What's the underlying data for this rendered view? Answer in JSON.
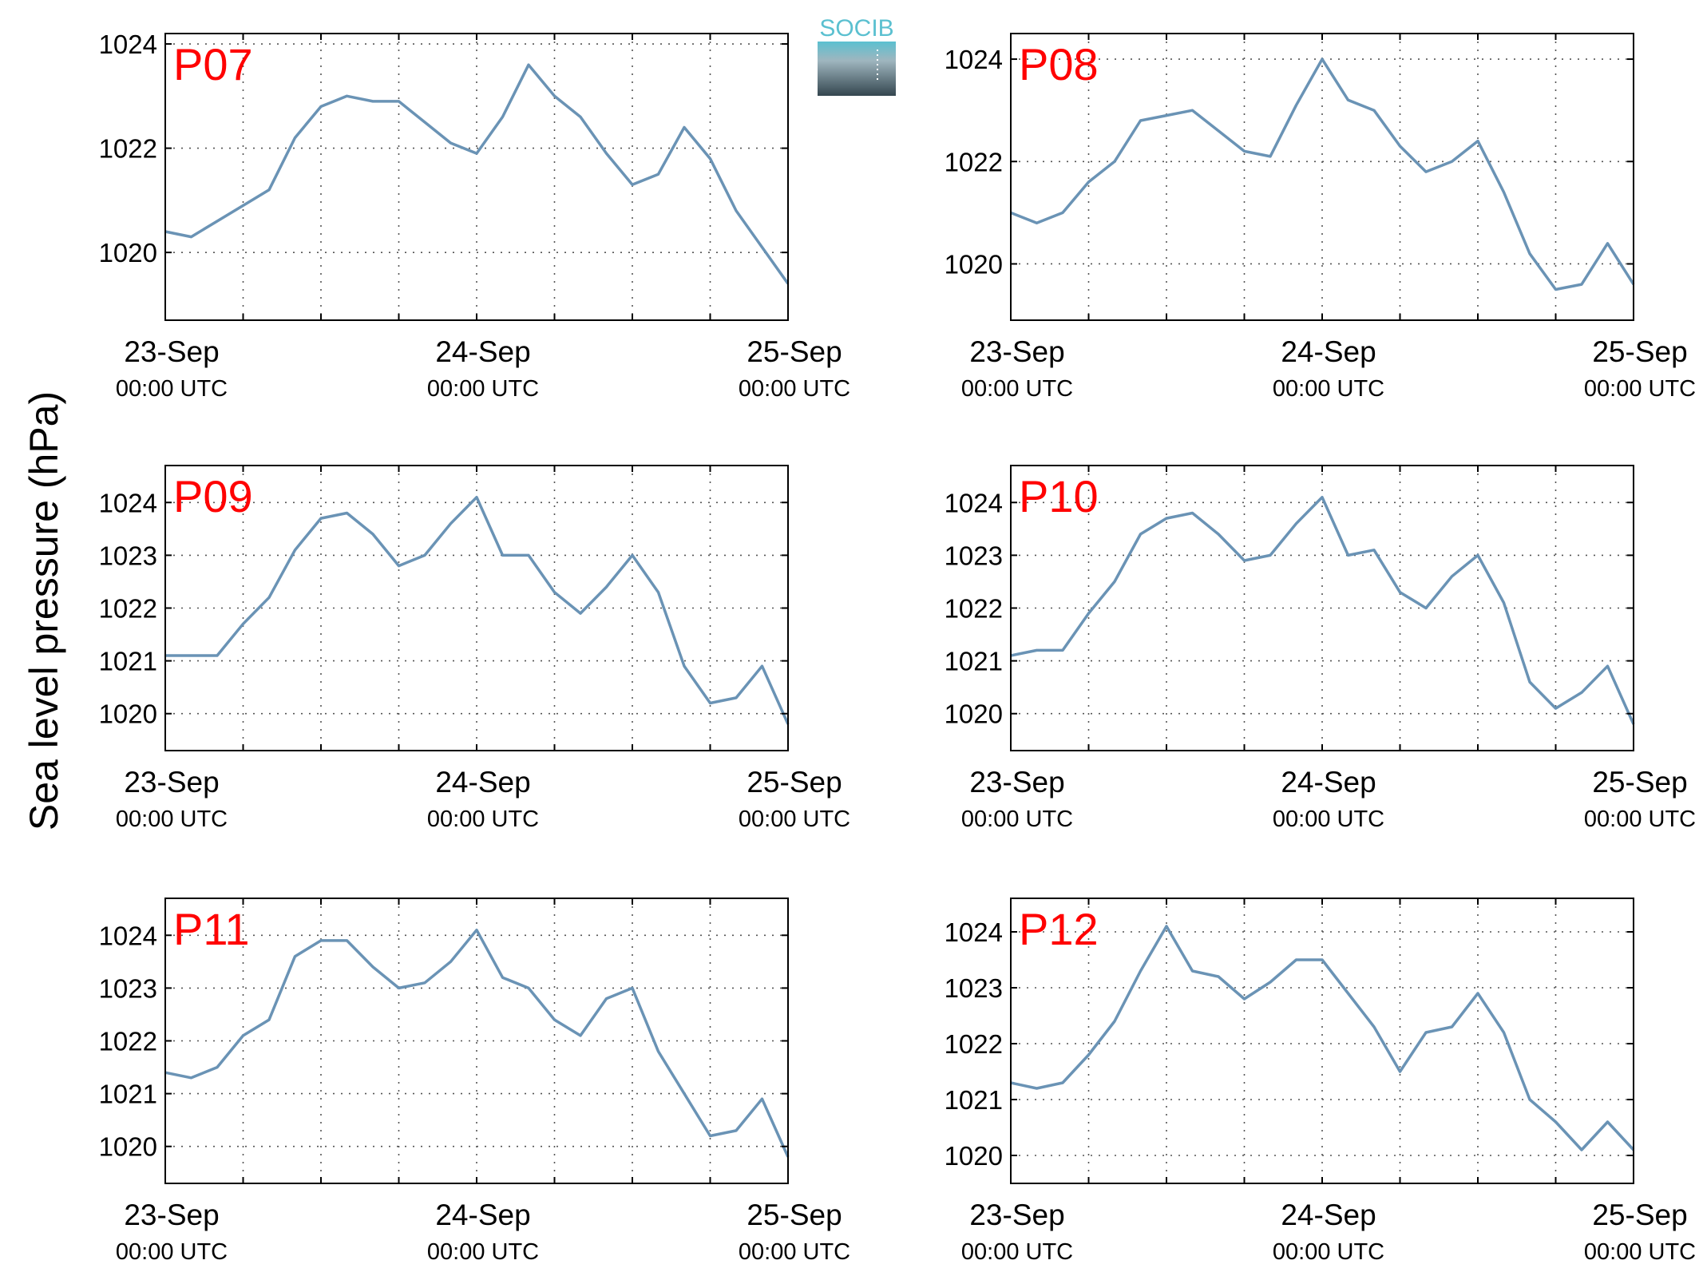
{
  "figure": {
    "ylabel": "Sea level pressure (hPa)",
    "logo_text": "SOCIB",
    "colors": {
      "line": "#6a93b5",
      "panel_label": "#ff0000",
      "axes": "#000000",
      "grid": "#555555",
      "logo_top": "#5bc0d0",
      "logo_bottom": "#34464f"
    }
  },
  "chart_data": [
    {
      "type": "line",
      "label": "P07",
      "x_ticks": [
        "23-Sep",
        "24-Sep",
        "25-Sep"
      ],
      "x_tick_sub": "00:00 UTC",
      "x": [
        0,
        2,
        4,
        6,
        8,
        10,
        12,
        14,
        16,
        18,
        20,
        22,
        24,
        26,
        28,
        30,
        32,
        34,
        36,
        38,
        40,
        42,
        44,
        46,
        48
      ],
      "y": [
        1020.4,
        1020.3,
        1020.6,
        1020.9,
        1021.2,
        1022.2,
        1022.8,
        1023.0,
        1022.9,
        1022.9,
        1022.5,
        1022.1,
        1021.9,
        1022.6,
        1023.6,
        1023.0,
        1022.6,
        1021.9,
        1021.3,
        1021.5,
        1022.4,
        1021.8,
        1020.8,
        1020.1,
        1019.4
      ],
      "ylim": [
        1018.7,
        1024.2
      ],
      "yticks": [
        1020,
        1022,
        1024
      ],
      "xlim": [
        0,
        48
      ],
      "grid": true
    },
    {
      "type": "line",
      "label": "P08",
      "x": [
        0,
        2,
        4,
        6,
        8,
        10,
        12,
        14,
        16,
        18,
        20,
        22,
        24,
        26,
        28,
        30,
        32,
        34,
        36,
        38,
        40,
        42,
        44,
        46,
        48
      ],
      "y": [
        1021.0,
        1020.8,
        1021.0,
        1021.6,
        1022.0,
        1022.8,
        1022.9,
        1023.0,
        1022.6,
        1022.2,
        1022.1,
        1023.1,
        1024.0,
        1023.2,
        1023.0,
        1022.3,
        1021.8,
        1022.0,
        1022.4,
        1021.4,
        1020.2,
        1019.5,
        1019.6,
        1020.4,
        1019.6
      ],
      "ylim": [
        1018.9,
        1024.5
      ],
      "yticks": [
        1020,
        1022,
        1024
      ],
      "xlim": [
        0,
        48
      ],
      "grid": true
    },
    {
      "type": "line",
      "label": "P09",
      "x": [
        0,
        2,
        4,
        6,
        8,
        10,
        12,
        14,
        16,
        18,
        20,
        22,
        24,
        26,
        28,
        30,
        32,
        34,
        36,
        38,
        40,
        42,
        44,
        46,
        48
      ],
      "y": [
        1021.1,
        1021.1,
        1021.1,
        1021.7,
        1022.2,
        1023.1,
        1023.7,
        1023.8,
        1023.4,
        1022.8,
        1023.0,
        1023.6,
        1024.1,
        1023.0,
        1023.0,
        1022.3,
        1021.9,
        1022.4,
        1023.0,
        1022.3,
        1020.9,
        1020.2,
        1020.3,
        1020.9,
        1019.8
      ],
      "ylim": [
        1019.3,
        1024.7
      ],
      "yticks": [
        1020,
        1021,
        1022,
        1023,
        1024
      ],
      "xlim": [
        0,
        48
      ],
      "grid": true
    },
    {
      "type": "line",
      "label": "P10",
      "x": [
        0,
        2,
        4,
        6,
        8,
        10,
        12,
        14,
        16,
        18,
        20,
        22,
        24,
        26,
        28,
        30,
        32,
        34,
        36,
        38,
        40,
        42,
        44,
        46,
        48
      ],
      "y": [
        1021.1,
        1021.2,
        1021.2,
        1021.9,
        1022.5,
        1023.4,
        1023.7,
        1023.8,
        1023.4,
        1022.9,
        1023.0,
        1023.6,
        1024.1,
        1023.0,
        1023.1,
        1022.3,
        1022.0,
        1022.6,
        1023.0,
        1022.1,
        1020.6,
        1020.1,
        1020.4,
        1020.9,
        1019.8
      ],
      "ylim": [
        1019.3,
        1024.7
      ],
      "yticks": [
        1020,
        1021,
        1022,
        1023,
        1024
      ],
      "xlim": [
        0,
        48
      ],
      "grid": true
    },
    {
      "type": "line",
      "label": "P11",
      "x": [
        0,
        2,
        4,
        6,
        8,
        10,
        12,
        14,
        16,
        18,
        20,
        22,
        24,
        26,
        28,
        30,
        32,
        34,
        36,
        38,
        40,
        42,
        44,
        46,
        48
      ],
      "y": [
        1021.4,
        1021.3,
        1021.5,
        1022.1,
        1022.4,
        1023.6,
        1023.9,
        1023.9,
        1023.4,
        1023.0,
        1023.1,
        1023.5,
        1024.1,
        1023.2,
        1023.0,
        1022.4,
        1022.1,
        1022.8,
        1023.0,
        1021.8,
        1021.0,
        1020.2,
        1020.3,
        1020.9,
        1019.8
      ],
      "ylim": [
        1019.3,
        1024.7
      ],
      "yticks": [
        1020,
        1021,
        1022,
        1023,
        1024
      ],
      "xlim": [
        0,
        48
      ],
      "grid": true
    },
    {
      "type": "line",
      "label": "P12",
      "x": [
        0,
        2,
        4,
        6,
        8,
        10,
        12,
        14,
        16,
        18,
        20,
        22,
        24,
        26,
        28,
        30,
        32,
        34,
        36,
        38,
        40,
        42,
        44,
        46,
        48
      ],
      "y": [
        1021.3,
        1021.2,
        1021.3,
        1021.8,
        1022.4,
        1023.3,
        1024.1,
        1023.3,
        1023.2,
        1022.8,
        1023.1,
        1023.5,
        1023.5,
        1022.9,
        1022.3,
        1021.5,
        1022.2,
        1022.3,
        1022.9,
        1022.2,
        1021.0,
        1020.6,
        1020.1,
        1020.6,
        1020.1
      ],
      "ylim": [
        1019.5,
        1024.6
      ],
      "yticks": [
        1020,
        1021,
        1022,
        1023,
        1024
      ],
      "xlim": [
        0,
        48
      ],
      "grid": true
    }
  ]
}
